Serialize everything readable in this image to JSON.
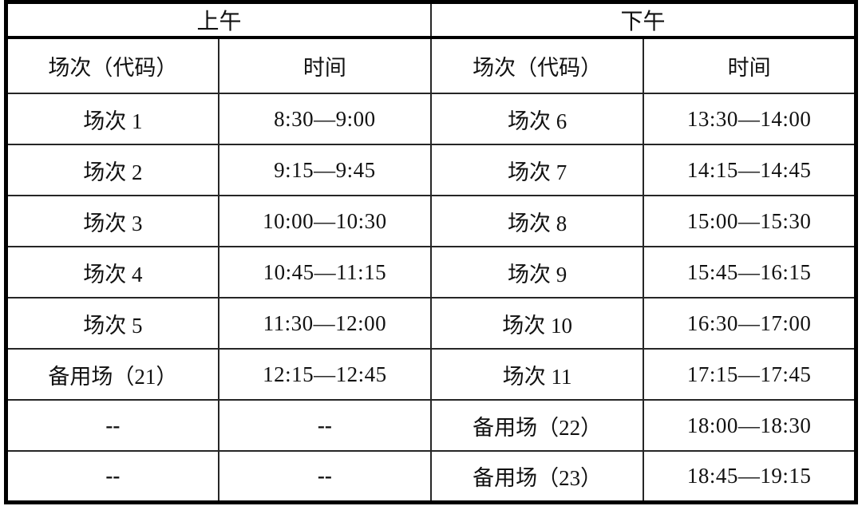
{
  "table": {
    "morning_label": "上午",
    "afternoon_label": "下午",
    "column_headers": [
      "场次（代码）",
      "时间",
      "场次（代码）",
      "时间"
    ],
    "rows": [
      [
        "场次 1",
        "8:30—9:00",
        "场次 6",
        "13:30—14:00"
      ],
      [
        "场次 2",
        "9:15—9:45",
        "场次 7",
        "14:15—14:45"
      ],
      [
        "场次 3",
        "10:00—10:30",
        "场次 8",
        "15:00—15:30"
      ],
      [
        "场次 4",
        "10:45—11:15",
        "场次 9",
        "15:45—16:15"
      ],
      [
        "场次 5",
        "11:30—12:00",
        "场次 10",
        "16:30—17:00"
      ],
      [
        "备用场（21）",
        "12:15—12:45",
        "场次 11",
        "17:15—17:45"
      ],
      [
        "--",
        "--",
        "备用场（22）",
        "18:00—18:30"
      ],
      [
        "--",
        "--",
        "备用场（23）",
        "18:45—19:15"
      ]
    ],
    "colors": {
      "border": "#000000",
      "inner_border": "#262626",
      "text": "#111111",
      "background": "#ffffff"
    }
  }
}
